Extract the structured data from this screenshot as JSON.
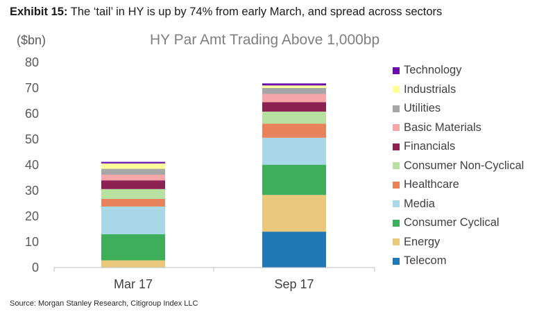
{
  "exhibit": {
    "label": "Exhibit 15:",
    "text": "The ‘tail’ in HY is up by 74% from early March, and spread across sectors"
  },
  "source": "Source: Morgan Stanley Research, Citigroup Index LLC",
  "chart_data": {
    "type": "bar",
    "stacked": true,
    "title": "HY Par Amt Trading Above 1,000bp",
    "ylabel": "($bn)",
    "xlabel": "",
    "ylim": [
      0,
      80
    ],
    "yticks": [
      0,
      10,
      20,
      30,
      40,
      50,
      60,
      70,
      80
    ],
    "grid": false,
    "legend_position": "right",
    "categories": [
      "Mar 17",
      "Sep 17"
    ],
    "series": [
      {
        "name": "Telecom",
        "color": "#1f77b4",
        "values": [
          0,
          14
        ]
      },
      {
        "name": "Energy",
        "color": "#e9c77b",
        "values": [
          2.8,
          14.3
        ]
      },
      {
        "name": "Consumer Cyclical",
        "color": "#3fae5a",
        "values": [
          10.2,
          11.8
        ]
      },
      {
        "name": "Media",
        "color": "#a8d8e8",
        "values": [
          10.8,
          10.5
        ]
      },
      {
        "name": "Healthcare",
        "color": "#e8825a",
        "values": [
          3,
          5.5
        ]
      },
      {
        "name": "Consumer Non-Cyclical",
        "color": "#b8e0a0",
        "values": [
          3.8,
          4.7
        ]
      },
      {
        "name": "Financials",
        "color": "#8b2252",
        "values": [
          3.4,
          3.7
        ]
      },
      {
        "name": "Basic Materials",
        "color": "#f4a6a8",
        "values": [
          2.2,
          3.2
        ]
      },
      {
        "name": "Utilities",
        "color": "#a6a6a6",
        "values": [
          2.3,
          2.3
        ]
      },
      {
        "name": "Industrials",
        "color": "#ffff9a",
        "values": [
          2.1,
          1.0
        ]
      },
      {
        "name": "Technology",
        "color": "#6a0dad",
        "values": [
          0.6,
          0.8
        ]
      }
    ]
  }
}
